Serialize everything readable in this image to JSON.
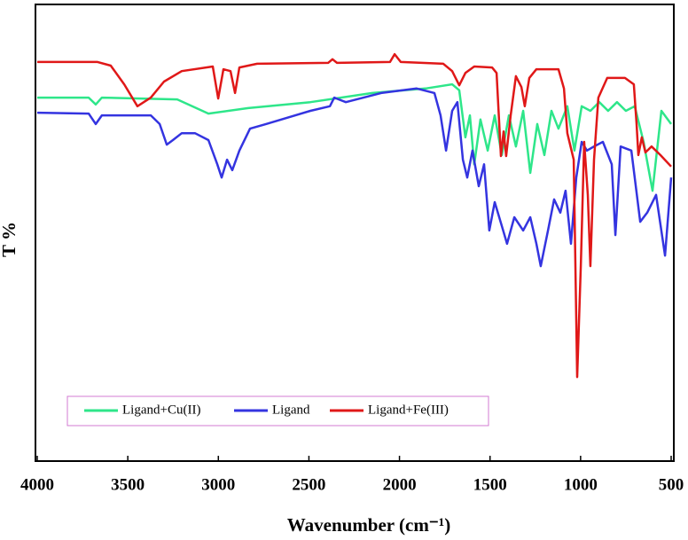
{
  "chart_data": {
    "type": "line",
    "xlabel": "Wavenumber (cm⁻¹)",
    "ylabel": "T %",
    "xlim": [
      4000,
      500
    ],
    "ylim": [
      0,
      100
    ],
    "xticks": [
      4000,
      3500,
      3000,
      2500,
      2000,
      1500,
      1000,
      500
    ],
    "legend": "lower left",
    "series": [
      {
        "name": "Ligand+Cu(II)",
        "color": "#2ee68a",
        "x": [
          4000,
          3716,
          3677,
          3643,
          3227,
          3055,
          2835,
          2492,
          2150,
          1856,
          1709,
          1670,
          1636,
          1611,
          1587,
          1553,
          1513,
          1474,
          1435,
          1396,
          1357,
          1317,
          1278,
          1239,
          1200,
          1161,
          1122,
          1073,
          1034,
          994,
          946,
          897,
          848,
          799,
          750,
          701,
          652,
          603,
          554,
          500
        ],
        "values": [
          79.6,
          79.6,
          78.1,
          79.6,
          79.2,
          76.1,
          77.3,
          78.6,
          80.6,
          81.6,
          82.5,
          81.2,
          70.9,
          75.7,
          65.0,
          74.8,
          68.0,
          75.7,
          67.0,
          75.7,
          68.9,
          76.7,
          63.1,
          73.8,
          67.0,
          76.7,
          72.8,
          77.7,
          68.0,
          77.7,
          76.7,
          78.6,
          76.7,
          78.6,
          76.7,
          77.7,
          69.9,
          59.2,
          76.7,
          73.8
        ]
      },
      {
        "name": "Ligand",
        "color": "#3434e0",
        "x": [
          4000,
          3716,
          3677,
          3643,
          3373,
          3324,
          3285,
          3251,
          3202,
          3129,
          3055,
          3006,
          2982,
          2952,
          2923,
          2884,
          2825,
          2737,
          2492,
          2384,
          2360,
          2296,
          2101,
          1905,
          1807,
          1773,
          1743,
          1709,
          1680,
          1650,
          1626,
          1597,
          1562,
          1533,
          1504,
          1474,
          1435,
          1406,
          1366,
          1317,
          1278,
          1244,
          1220,
          1180,
          1146,
          1112,
          1083,
          1053,
          1024,
          994,
          965,
          926,
          877,
          828,
          808,
          779,
          720,
          671,
          632,
          583,
          534,
          500
        ],
        "values": [
          76.3,
          76.1,
          73.8,
          75.7,
          75.7,
          73.8,
          69.3,
          70.3,
          71.8,
          71.8,
          70.3,
          65.0,
          62.1,
          66.0,
          63.7,
          68.0,
          72.8,
          73.8,
          76.7,
          77.7,
          79.6,
          78.6,
          80.6,
          81.6,
          80.6,
          75.7,
          68.0,
          76.7,
          78.6,
          66.0,
          62.1,
          68.0,
          60.2,
          65.0,
          50.5,
          56.7,
          51.5,
          47.6,
          53.4,
          50.5,
          53.4,
          47.6,
          42.7,
          50.5,
          57.3,
          54.4,
          59.2,
          47.6,
          62.1,
          69.9,
          68.0,
          68.9,
          69.9,
          65.0,
          49.5,
          68.9,
          68.0,
          52.4,
          54.4,
          58.3,
          45.0,
          62.1
        ]
      },
      {
        "name": "Ligand+Fe(III)",
        "color": "#e01818",
        "x": [
          4000,
          3667,
          3594,
          3520,
          3447,
          3373,
          3300,
          3202,
          3031,
          3001,
          2972,
          2933,
          2908,
          2884,
          2786,
          2394,
          2370,
          2345,
          2052,
          2027,
          1993,
          1758,
          1709,
          1670,
          1636,
          1587,
          1489,
          1464,
          1440,
          1425,
          1411,
          1386,
          1357,
          1327,
          1308,
          1283,
          1244,
          1122,
          1092,
          1073,
          1038,
          1019,
          999,
          980,
          960,
          946,
          926,
          902,
          853,
          755,
          706,
          691,
          681,
          662,
          642,
          608,
          559,
          500
        ],
        "values": [
          87.4,
          87.4,
          86.6,
          82.5,
          77.7,
          79.6,
          83.1,
          85.4,
          86.4,
          79.4,
          85.8,
          85.4,
          80.6,
          86.2,
          87.0,
          87.2,
          88.0,
          87.2,
          87.4,
          89.1,
          87.4,
          87.0,
          85.4,
          82.3,
          85.0,
          86.4,
          86.2,
          85.0,
          66.8,
          72.2,
          66.8,
          75.7,
          84.3,
          81.9,
          77.7,
          83.9,
          85.8,
          85.8,
          81.6,
          71.8,
          66.0,
          18.4,
          42.7,
          69.9,
          58.3,
          42.7,
          66.0,
          79.6,
          83.9,
          83.9,
          82.5,
          73.8,
          67.0,
          70.9,
          67.6,
          68.9,
          67.0,
          64.5
        ]
      }
    ]
  }
}
